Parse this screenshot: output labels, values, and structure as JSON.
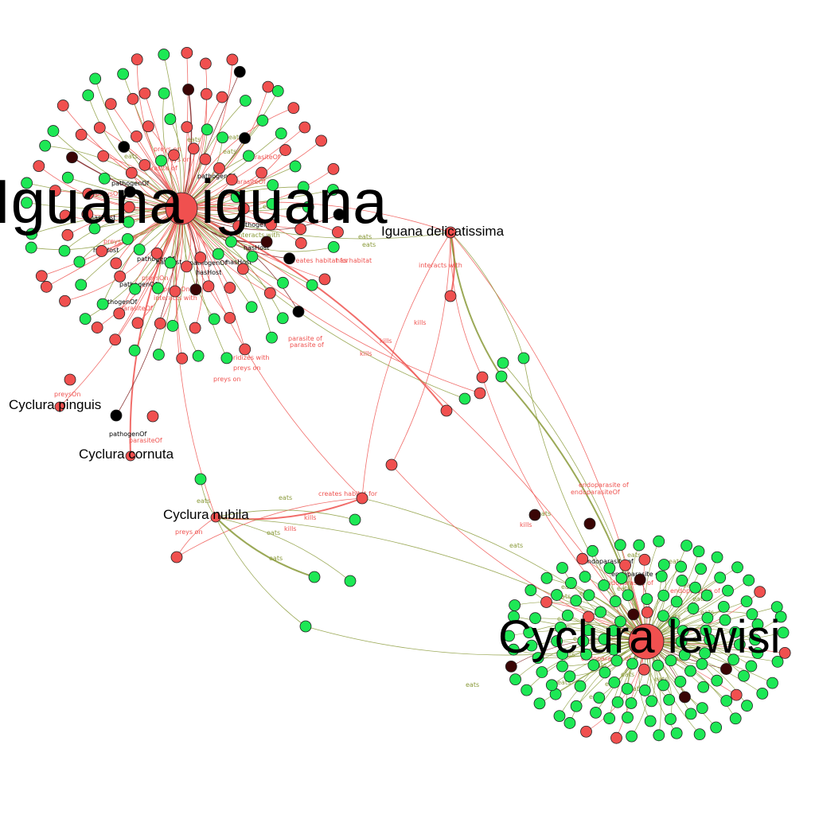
{
  "nodes": {
    "iguana_iguana": "Iguana iguana",
    "cyclura_lewisi": "Cyclura lewisi",
    "iguana_delicatissima": "Iguana delicatissima",
    "cyclura_pinguis": "Cyclura pinguis",
    "cyclura_cornuta": "Cyclura cornuta",
    "cyclura_nubila": "Cyclura nubila"
  },
  "relations": {
    "eats": "eats",
    "preys_on": "preys on",
    "preys_On": "preysOn",
    "parasite_of": "parasite of",
    "parasite_Of": "parasiteOf",
    "pathogen_Of": "pathogenOf",
    "has_Host": "hasHost",
    "interacts_with": "interacts with",
    "kills": "kills",
    "creates_habitat_for": "creates habitat for",
    "has_habitat": "has habitat",
    "hybridizes_with": "hybridizes with",
    "endoparasite_of": "endoparasite of",
    "endoparasite_Of": "endoparasiteOf"
  },
  "colors": {
    "source_node": "#f0504f",
    "target_node": "#1de855",
    "other_node": "#000000",
    "dark_node": "#3a0505",
    "red_edge": "#ef5350",
    "green_edge": "#8a9a3a",
    "dark_edge": "#7a1a1a"
  }
}
